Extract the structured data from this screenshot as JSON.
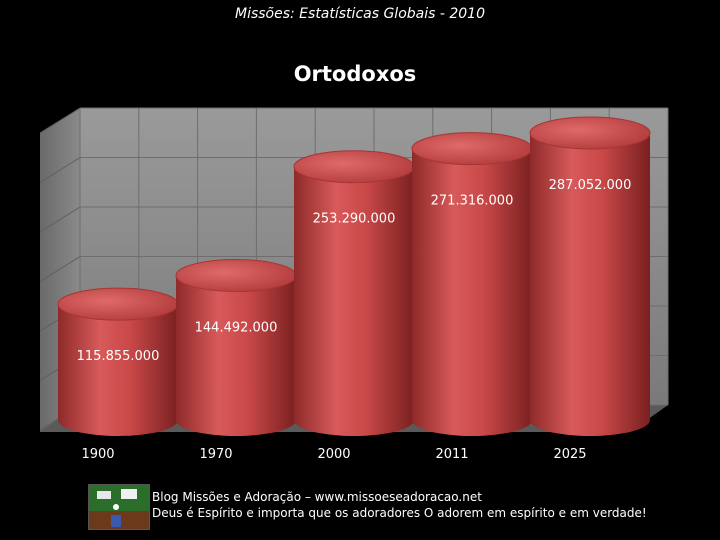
{
  "page": {
    "header": "Missões: Estatísticas Globais - 2010"
  },
  "chart_data": {
    "type": "bar",
    "title": "Ortodoxos",
    "categories": [
      "1900",
      "1970",
      "2000",
      "2011",
      "2025"
    ],
    "values": [
      115855000,
      144492000,
      253290000,
      271316000,
      287052000
    ],
    "value_labels": [
      "115.855.000",
      "144.492.000",
      "253.290.000",
      "271.316.000",
      "287.052.000"
    ],
    "ylim": [
      0,
      300000000
    ],
    "grid": true,
    "bar_color": "#c84a4a",
    "wall_color": "#8a8a8a"
  },
  "footer": {
    "line1": "Blog Missões e Adoração – www.missoeseadoracao.net",
    "line2": "Deus é Espírito e importa que os adoradores O adorem em espírito e em verdade!"
  }
}
